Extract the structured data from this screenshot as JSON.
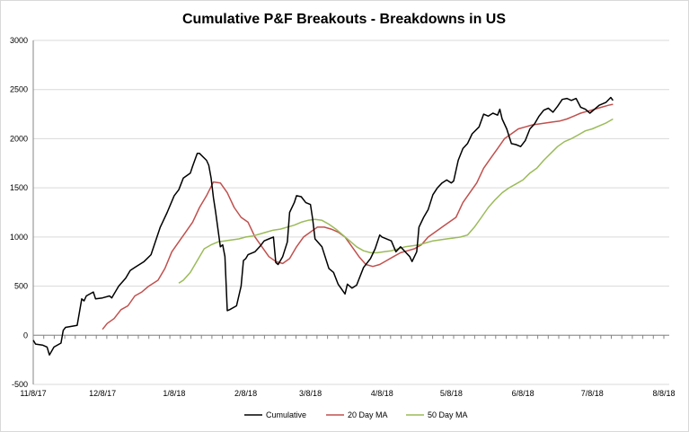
{
  "chart_data": {
    "type": "line",
    "title": "Cumulative P&F Breakouts - Breakdowns in US",
    "xlabel": "",
    "ylabel": "",
    "ylim": [
      -500,
      3000
    ],
    "y_ticks": [
      "-500",
      "0",
      "500",
      "1000",
      "1500",
      "2000",
      "2500",
      "3000"
    ],
    "y_tick_values": [
      -500,
      0,
      500,
      1000,
      1500,
      2000,
      2500,
      3000
    ],
    "x_ticks": [
      "11/8/17",
      "12/8/17",
      "1/8/18",
      "2/8/18",
      "3/8/18",
      "4/8/18",
      "5/8/18",
      "6/8/18",
      "7/8/18",
      "8/8/18"
    ],
    "x_tick_dates": [
      "2017-11-08",
      "2017-12-08",
      "2018-01-08",
      "2018-02-08",
      "2018-03-08",
      "2018-04-08",
      "2018-05-08",
      "2018-06-08",
      "2018-07-08",
      "2018-08-08"
    ],
    "x_range": [
      "2017-11-08",
      "2018-08-08"
    ],
    "grid": "horizontal",
    "legend_position": "bottom",
    "series": [
      {
        "name": "Cumulative",
        "color": "#000000",
        "points": [
          [
            "2017-11-08",
            -50
          ],
          [
            "2017-11-09",
            -90
          ],
          [
            "2017-11-12",
            -100
          ],
          [
            "2017-11-14",
            -120
          ],
          [
            "2017-11-15",
            -200
          ],
          [
            "2017-11-17",
            -120
          ],
          [
            "2017-11-20",
            -80
          ],
          [
            "2017-11-21",
            50
          ],
          [
            "2017-11-22",
            80
          ],
          [
            "2017-11-27",
            100
          ],
          [
            "2017-11-29",
            370
          ],
          [
            "2017-11-30",
            350
          ],
          [
            "2017-12-01",
            400
          ],
          [
            "2017-12-04",
            440
          ],
          [
            "2017-12-05",
            370
          ],
          [
            "2017-12-08",
            380
          ],
          [
            "2017-12-11",
            400
          ],
          [
            "2017-12-12",
            380
          ],
          [
            "2017-12-13",
            420
          ],
          [
            "2017-12-15",
            500
          ],
          [
            "2017-12-18",
            580
          ],
          [
            "2017-12-20",
            660
          ],
          [
            "2017-12-22",
            690
          ],
          [
            "2017-12-26",
            750
          ],
          [
            "2017-12-29",
            820
          ],
          [
            "2018-01-02",
            1100
          ],
          [
            "2018-01-03",
            1150
          ],
          [
            "2018-01-05",
            1250
          ],
          [
            "2018-01-08",
            1420
          ],
          [
            "2018-01-10",
            1480
          ],
          [
            "2018-01-12",
            1600
          ],
          [
            "2018-01-15",
            1650
          ],
          [
            "2018-01-16",
            1720
          ],
          [
            "2018-01-18",
            1850
          ],
          [
            "2018-01-19",
            1850
          ],
          [
            "2018-01-22",
            1780
          ],
          [
            "2018-01-23",
            1730
          ],
          [
            "2018-01-24",
            1600
          ],
          [
            "2018-01-25",
            1400
          ],
          [
            "2018-01-26",
            1250
          ],
          [
            "2018-01-28",
            900
          ],
          [
            "2018-01-29",
            920
          ],
          [
            "2018-01-30",
            800
          ],
          [
            "2018-01-31",
            250
          ],
          [
            "2018-02-01",
            260
          ],
          [
            "2018-02-04",
            300
          ],
          [
            "2018-02-06",
            500
          ],
          [
            "2018-02-07",
            760
          ],
          [
            "2018-02-08",
            780
          ],
          [
            "2018-02-09",
            820
          ],
          [
            "2018-02-12",
            850
          ],
          [
            "2018-02-14",
            900
          ],
          [
            "2018-02-16",
            960
          ],
          [
            "2018-02-18",
            980
          ],
          [
            "2018-02-20",
            1000
          ],
          [
            "2018-02-21",
            740
          ],
          [
            "2018-02-22",
            720
          ],
          [
            "2018-02-24",
            800
          ],
          [
            "2018-02-26",
            950
          ],
          [
            "2018-02-27",
            1250
          ],
          [
            "2018-03-01",
            1350
          ],
          [
            "2018-03-02",
            1420
          ],
          [
            "2018-03-04",
            1410
          ],
          [
            "2018-03-06",
            1350
          ],
          [
            "2018-03-08",
            1330
          ],
          [
            "2018-03-09",
            1180
          ],
          [
            "2018-03-10",
            980
          ],
          [
            "2018-03-13",
            900
          ],
          [
            "2018-03-16",
            680
          ],
          [
            "2018-03-18",
            640
          ],
          [
            "2018-03-20",
            520
          ],
          [
            "2018-03-23",
            420
          ],
          [
            "2018-03-24",
            520
          ],
          [
            "2018-03-26",
            480
          ],
          [
            "2018-03-28",
            510
          ],
          [
            "2018-03-31",
            690
          ],
          [
            "2018-04-03",
            780
          ],
          [
            "2018-04-05",
            880
          ],
          [
            "2018-04-07",
            1020
          ],
          [
            "2018-04-08",
            1000
          ],
          [
            "2018-04-12",
            960
          ],
          [
            "2018-04-14",
            850
          ],
          [
            "2018-04-16",
            900
          ],
          [
            "2018-04-18",
            850
          ],
          [
            "2018-04-20",
            800
          ],
          [
            "2018-04-21",
            750
          ],
          [
            "2018-04-23",
            850
          ],
          [
            "2018-04-24",
            1100
          ],
          [
            "2018-04-26",
            1200
          ],
          [
            "2018-04-28",
            1280
          ],
          [
            "2018-04-30",
            1430
          ],
          [
            "2018-05-02",
            1500
          ],
          [
            "2018-05-04",
            1550
          ],
          [
            "2018-05-06",
            1580
          ],
          [
            "2018-05-08",
            1550
          ],
          [
            "2018-05-09",
            1570
          ],
          [
            "2018-05-11",
            1780
          ],
          [
            "2018-05-13",
            1900
          ],
          [
            "2018-05-15",
            1950
          ],
          [
            "2018-05-17",
            2050
          ],
          [
            "2018-05-20",
            2120
          ],
          [
            "2018-05-22",
            2250
          ],
          [
            "2018-05-24",
            2230
          ],
          [
            "2018-05-26",
            2260
          ],
          [
            "2018-05-28",
            2240
          ],
          [
            "2018-05-29",
            2300
          ],
          [
            "2018-05-30",
            2200
          ],
          [
            "2018-06-01",
            2100
          ],
          [
            "2018-06-03",
            1950
          ],
          [
            "2018-06-05",
            1940
          ],
          [
            "2018-06-07",
            1920
          ],
          [
            "2018-06-09",
            1980
          ],
          [
            "2018-06-11",
            2100
          ],
          [
            "2018-06-13",
            2150
          ],
          [
            "2018-06-15",
            2230
          ],
          [
            "2018-06-17",
            2290
          ],
          [
            "2018-06-19",
            2310
          ],
          [
            "2018-06-21",
            2270
          ],
          [
            "2018-06-23",
            2330
          ],
          [
            "2018-06-25",
            2400
          ],
          [
            "2018-06-27",
            2410
          ],
          [
            "2018-06-29",
            2390
          ],
          [
            "2018-07-01",
            2410
          ],
          [
            "2018-07-03",
            2320
          ],
          [
            "2018-07-05",
            2300
          ],
          [
            "2018-07-07",
            2260
          ],
          [
            "2018-07-09",
            2300
          ],
          [
            "2018-07-11",
            2340
          ],
          [
            "2018-07-14",
            2370
          ],
          [
            "2018-07-16",
            2420
          ],
          [
            "2018-07-17",
            2390
          ]
        ]
      },
      {
        "name": "20 Day MA",
        "color": "#c0504d",
        "points": [
          [
            "2017-12-08",
            60
          ],
          [
            "2017-12-10",
            120
          ],
          [
            "2017-12-13",
            170
          ],
          [
            "2017-12-16",
            260
          ],
          [
            "2017-12-19",
            300
          ],
          [
            "2017-12-22",
            400
          ],
          [
            "2017-12-25",
            440
          ],
          [
            "2017-12-28",
            500
          ],
          [
            "2018-01-01",
            560
          ],
          [
            "2018-01-04",
            680
          ],
          [
            "2018-01-07",
            850
          ],
          [
            "2018-01-10",
            950
          ],
          [
            "2018-01-13",
            1050
          ],
          [
            "2018-01-16",
            1150
          ],
          [
            "2018-01-19",
            1300
          ],
          [
            "2018-01-22",
            1420
          ],
          [
            "2018-01-25",
            1560
          ],
          [
            "2018-01-28",
            1550
          ],
          [
            "2018-01-31",
            1450
          ],
          [
            "2018-02-03",
            1300
          ],
          [
            "2018-02-06",
            1200
          ],
          [
            "2018-02-09",
            1150
          ],
          [
            "2018-02-12",
            1000
          ],
          [
            "2018-02-15",
            900
          ],
          [
            "2018-02-18",
            800
          ],
          [
            "2018-02-21",
            750
          ],
          [
            "2018-02-24",
            730
          ],
          [
            "2018-02-27",
            780
          ],
          [
            "2018-03-02",
            900
          ],
          [
            "2018-03-05",
            1000
          ],
          [
            "2018-03-08",
            1050
          ],
          [
            "2018-03-11",
            1100
          ],
          [
            "2018-03-14",
            1100
          ],
          [
            "2018-03-17",
            1080
          ],
          [
            "2018-03-20",
            1050
          ],
          [
            "2018-03-23",
            1000
          ],
          [
            "2018-03-26",
            900
          ],
          [
            "2018-03-29",
            800
          ],
          [
            "2018-04-01",
            720
          ],
          [
            "2018-04-04",
            700
          ],
          [
            "2018-04-07",
            720
          ],
          [
            "2018-04-10",
            760
          ],
          [
            "2018-04-13",
            800
          ],
          [
            "2018-04-16",
            840
          ],
          [
            "2018-04-19",
            860
          ],
          [
            "2018-04-22",
            880
          ],
          [
            "2018-04-25",
            920
          ],
          [
            "2018-04-28",
            1000
          ],
          [
            "2018-05-01",
            1050
          ],
          [
            "2018-05-04",
            1100
          ],
          [
            "2018-05-07",
            1150
          ],
          [
            "2018-05-10",
            1200
          ],
          [
            "2018-05-13",
            1350
          ],
          [
            "2018-05-16",
            1450
          ],
          [
            "2018-05-19",
            1550
          ],
          [
            "2018-05-22",
            1700
          ],
          [
            "2018-05-25",
            1800
          ],
          [
            "2018-05-28",
            1900
          ],
          [
            "2018-05-31",
            2000
          ],
          [
            "2018-06-03",
            2050
          ],
          [
            "2018-06-06",
            2100
          ],
          [
            "2018-06-09",
            2120
          ],
          [
            "2018-06-12",
            2140
          ],
          [
            "2018-06-15",
            2150
          ],
          [
            "2018-06-18",
            2160
          ],
          [
            "2018-06-21",
            2170
          ],
          [
            "2018-06-24",
            2180
          ],
          [
            "2018-06-27",
            2200
          ],
          [
            "2018-06-30",
            2230
          ],
          [
            "2018-07-03",
            2260
          ],
          [
            "2018-07-06",
            2280
          ],
          [
            "2018-07-09",
            2300
          ],
          [
            "2018-07-12",
            2320
          ],
          [
            "2018-07-15",
            2340
          ],
          [
            "2018-07-17",
            2350
          ]
        ]
      },
      {
        "name": "50 Day MA",
        "color": "#9bbb59",
        "points": [
          [
            "2018-01-10",
            530
          ],
          [
            "2018-01-12",
            560
          ],
          [
            "2018-01-15",
            640
          ],
          [
            "2018-01-18",
            760
          ],
          [
            "2018-01-21",
            880
          ],
          [
            "2018-01-24",
            920
          ],
          [
            "2018-01-27",
            950
          ],
          [
            "2018-01-30",
            960
          ],
          [
            "2018-02-02",
            970
          ],
          [
            "2018-02-05",
            980
          ],
          [
            "2018-02-08",
            1000
          ],
          [
            "2018-02-11",
            1010
          ],
          [
            "2018-02-14",
            1030
          ],
          [
            "2018-02-17",
            1050
          ],
          [
            "2018-02-20",
            1070
          ],
          [
            "2018-02-23",
            1080
          ],
          [
            "2018-02-26",
            1100
          ],
          [
            "2018-03-01",
            1120
          ],
          [
            "2018-03-04",
            1150
          ],
          [
            "2018-03-07",
            1170
          ],
          [
            "2018-03-10",
            1180
          ],
          [
            "2018-03-13",
            1170
          ],
          [
            "2018-03-16",
            1130
          ],
          [
            "2018-03-19",
            1080
          ],
          [
            "2018-03-22",
            1020
          ],
          [
            "2018-03-25",
            960
          ],
          [
            "2018-03-28",
            900
          ],
          [
            "2018-03-31",
            860
          ],
          [
            "2018-04-03",
            840
          ],
          [
            "2018-04-06",
            840
          ],
          [
            "2018-04-09",
            850
          ],
          [
            "2018-04-12",
            860
          ],
          [
            "2018-04-15",
            880
          ],
          [
            "2018-04-18",
            900
          ],
          [
            "2018-04-21",
            910
          ],
          [
            "2018-04-24",
            920
          ],
          [
            "2018-04-27",
            940
          ],
          [
            "2018-04-30",
            960
          ],
          [
            "2018-05-03",
            970
          ],
          [
            "2018-05-06",
            980
          ],
          [
            "2018-05-09",
            990
          ],
          [
            "2018-05-12",
            1000
          ],
          [
            "2018-05-15",
            1020
          ],
          [
            "2018-05-18",
            1100
          ],
          [
            "2018-05-21",
            1200
          ],
          [
            "2018-05-24",
            1300
          ],
          [
            "2018-05-27",
            1380
          ],
          [
            "2018-05-30",
            1450
          ],
          [
            "2018-06-02",
            1500
          ],
          [
            "2018-06-05",
            1540
          ],
          [
            "2018-06-08",
            1580
          ],
          [
            "2018-06-11",
            1650
          ],
          [
            "2018-06-14",
            1700
          ],
          [
            "2018-06-17",
            1780
          ],
          [
            "2018-06-20",
            1850
          ],
          [
            "2018-06-23",
            1920
          ],
          [
            "2018-06-26",
            1970
          ],
          [
            "2018-06-29",
            2000
          ],
          [
            "2018-07-02",
            2040
          ],
          [
            "2018-07-05",
            2080
          ],
          [
            "2018-07-08",
            2100
          ],
          [
            "2018-07-11",
            2130
          ],
          [
            "2018-07-14",
            2160
          ],
          [
            "2018-07-17",
            2200
          ]
        ]
      }
    ]
  }
}
